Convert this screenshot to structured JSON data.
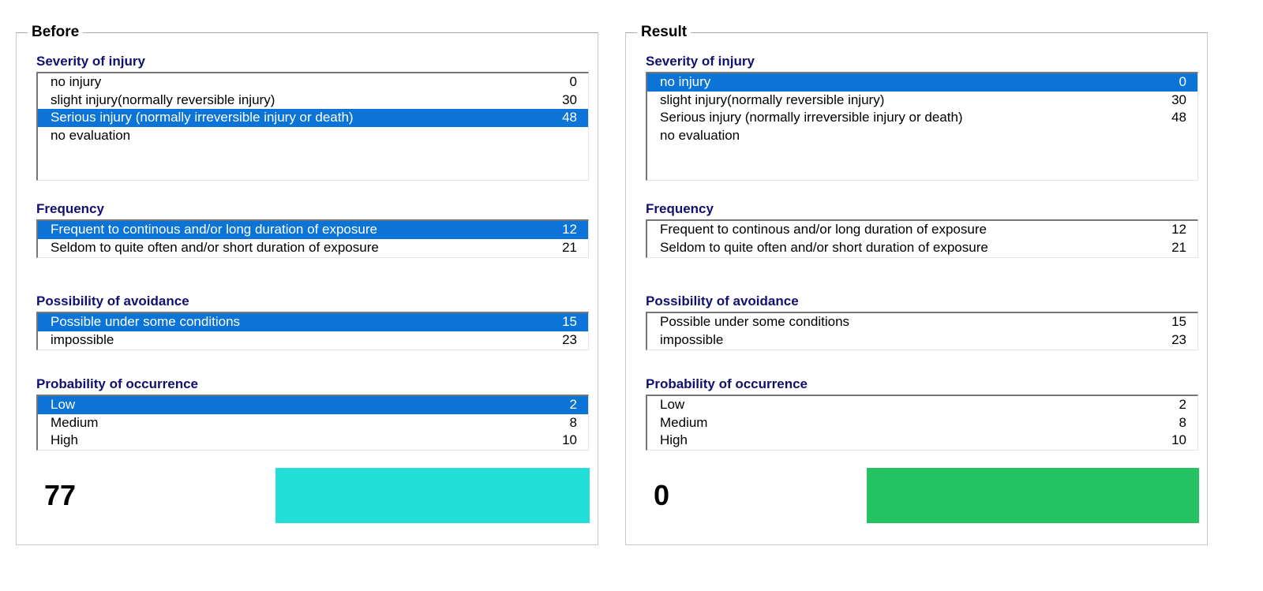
{
  "colors": {
    "section_title": "#101070",
    "selection": "#0b74d6",
    "before_bar": "#22e0d8",
    "result_bar": "#24c263"
  },
  "panels": [
    {
      "title": "Before",
      "severity": {
        "title": "Severity of injury",
        "items": [
          {
            "label": "no injury",
            "value": "0",
            "selected": false
          },
          {
            "label": "slight injury(normally reversible injury)",
            "value": "30",
            "selected": false
          },
          {
            "label": "Serious injury (normally irreversible injury or death)",
            "value": "48",
            "selected": true
          },
          {
            "label": "no evaluation",
            "value": "",
            "selected": false
          }
        ]
      },
      "frequency": {
        "title": "Frequency",
        "items": [
          {
            "label": "Frequent to continous and/or long duration of exposure",
            "value": "12",
            "selected": true
          },
          {
            "label": "Seldom to quite often and/or short duration of exposure",
            "value": "21",
            "selected": false
          }
        ]
      },
      "avoidance": {
        "title": "Possibility of avoidance",
        "items": [
          {
            "label": "Possible under some conditions",
            "value": "15",
            "selected": true
          },
          {
            "label": "impossible",
            "value": "23",
            "selected": false
          }
        ]
      },
      "probability": {
        "title": "Probability of occurrence",
        "items": [
          {
            "label": "Low",
            "value": "2",
            "selected": true
          },
          {
            "label": "Medium",
            "value": "8",
            "selected": false
          },
          {
            "label": "High",
            "value": "10",
            "selected": false
          }
        ]
      },
      "score": "77"
    },
    {
      "title": "Result",
      "severity": {
        "title": "Severity of injury",
        "items": [
          {
            "label": "no injury",
            "value": "0",
            "selected": true
          },
          {
            "label": "slight injury(normally reversible injury)",
            "value": "30",
            "selected": false
          },
          {
            "label": "Serious injury (normally irreversible injury or death)",
            "value": "48",
            "selected": false
          },
          {
            "label": "no evaluation",
            "value": "",
            "selected": false
          }
        ]
      },
      "frequency": {
        "title": "Frequency",
        "items": [
          {
            "label": "Frequent to continous and/or long duration of exposure",
            "value": "12",
            "selected": false
          },
          {
            "label": "Seldom to quite often and/or short duration of exposure",
            "value": "21",
            "selected": false
          }
        ]
      },
      "avoidance": {
        "title": "Possibility of avoidance",
        "items": [
          {
            "label": "Possible under some conditions",
            "value": "15",
            "selected": false
          },
          {
            "label": "impossible",
            "value": "23",
            "selected": false
          }
        ]
      },
      "probability": {
        "title": "Probability of occurrence",
        "items": [
          {
            "label": "Low",
            "value": "2",
            "selected": false
          },
          {
            "label": "Medium",
            "value": "8",
            "selected": false
          },
          {
            "label": "High",
            "value": "10",
            "selected": false
          }
        ]
      },
      "score": "0"
    }
  ]
}
